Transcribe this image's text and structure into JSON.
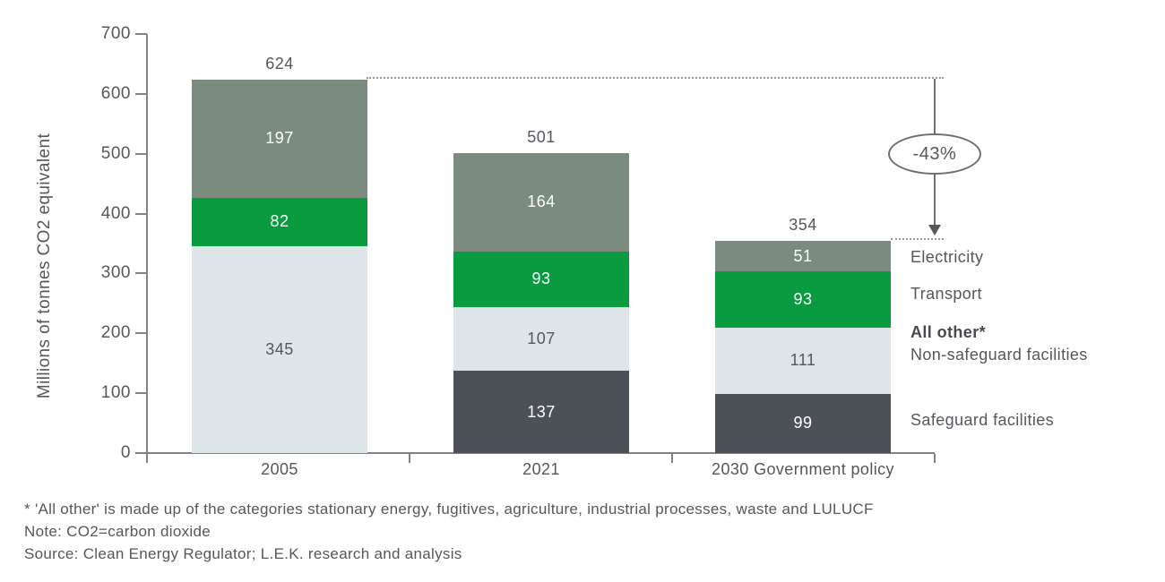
{
  "ylabel": "Millions of tonnes CO2 equivalent",
  "annotation": {
    "label": "-43%"
  },
  "legend": {
    "electricity": "Electricity",
    "transport": "Transport",
    "all_other": "All other*",
    "non_safeguard": "Non-safeguard facilities",
    "safeguard": "Safeguard facilities"
  },
  "footnotes": {
    "line1": "* 'All other' is made up of the categories stationary energy, fugitives, agriculture, industrial processes, waste and LULUCF",
    "line2": "Note: CO2=carbon dioxide",
    "line3": "Source: Clean Energy Regulator; L.E.K. research and analysis"
  },
  "colors": {
    "electricity": "#7b8b7e",
    "transport": "#0a9b41",
    "non_safeguard": "#dee5e9",
    "safeguard": "#4b5156",
    "axis": "#808285",
    "text_dark": "#55575c",
    "text_light": "#ffffff",
    "dotted_line": "#97999b"
  },
  "chart_data": {
    "type": "bar",
    "stacked": true,
    "title": "",
    "xlabel": "",
    "ylabel": "Millions of tonnes CO2 equivalent",
    "ylim": [
      0,
      700
    ],
    "yticks": [
      0,
      100,
      200,
      300,
      400,
      500,
      600,
      700
    ],
    "grid": false,
    "legend_position": "right",
    "categories": [
      "2005",
      "2021",
      "2030 Government policy"
    ],
    "series_labels": {
      "electricity": "Electricity",
      "transport": "Transport",
      "non_safeguard": "All other* / Non-safeguard facilities",
      "safeguard": "Safeguard facilities"
    },
    "bars": [
      {
        "category": "2005",
        "total": 624,
        "segments": [
          {
            "key": "non_safeguard",
            "value": 345
          },
          {
            "key": "transport",
            "value": 82
          },
          {
            "key": "electricity",
            "value": 197
          }
        ]
      },
      {
        "category": "2021",
        "total": 501,
        "segments": [
          {
            "key": "safeguard",
            "value": 137
          },
          {
            "key": "non_safeguard",
            "value": 107
          },
          {
            "key": "transport",
            "value": 93
          },
          {
            "key": "electricity",
            "value": 164
          }
        ]
      },
      {
        "category": "2030 Government policy",
        "total": 354,
        "segments": [
          {
            "key": "safeguard",
            "value": 99
          },
          {
            "key": "non_safeguard",
            "value": 111
          },
          {
            "key": "transport",
            "value": 93
          },
          {
            "key": "electricity",
            "value": 51
          }
        ]
      }
    ],
    "annotation": {
      "text": "-43%",
      "from_total": 624,
      "to_total": 354
    }
  }
}
